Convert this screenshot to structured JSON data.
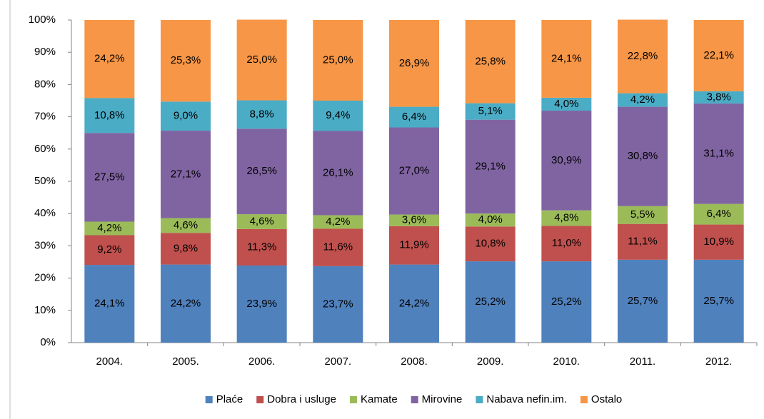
{
  "chart_data": {
    "type": "stacked_bar",
    "categories": [
      "2004.",
      "2005.",
      "2006.",
      "2007.",
      "2008.",
      "2009.",
      "2010.",
      "2011.",
      "2012."
    ],
    "series": [
      {
        "name": "Plaće",
        "color": "#4f81bd",
        "values": [
          24.1,
          24.2,
          23.9,
          23.7,
          24.2,
          25.2,
          25.2,
          25.7,
          25.7
        ],
        "value_labels": [
          "24,1%",
          "24,2%",
          "23,9%",
          "23,7%",
          "24,2%",
          "25,2%",
          "25,2%",
          "25,7%",
          "25,7%"
        ]
      },
      {
        "name": "Dobra i usluge",
        "color": "#c0504d",
        "values": [
          9.2,
          9.8,
          11.3,
          11.6,
          11.9,
          10.8,
          11.0,
          11.1,
          10.9
        ],
        "value_labels": [
          "9,2%",
          "9,8%",
          "11,3%",
          "11,6%",
          "11,9%",
          "10,8%",
          "11,0%",
          "11,1%",
          "10,9%"
        ]
      },
      {
        "name": "Kamate",
        "color": "#9bbb59",
        "values": [
          4.2,
          4.6,
          4.6,
          4.2,
          3.6,
          4.0,
          4.8,
          5.5,
          6.4
        ],
        "value_labels": [
          "4,2%",
          "4,6%",
          "4,6%",
          "4,2%",
          "3,6%",
          "4,0%",
          "4,8%",
          "5,5%",
          "6,4%"
        ]
      },
      {
        "name": "Mirovine",
        "color": "#8064a2",
        "values": [
          27.5,
          27.1,
          26.5,
          26.1,
          27.0,
          29.1,
          30.9,
          30.8,
          31.1
        ],
        "value_labels": [
          "27,5%",
          "27,1%",
          "26,5%",
          "26,1%",
          "27,0%",
          "29,1%",
          "30,9%",
          "30,8%",
          "31,1%"
        ]
      },
      {
        "name": "Nabava nefin.im.",
        "color": "#4bacc6",
        "values": [
          10.8,
          9.0,
          8.8,
          9.4,
          6.4,
          5.1,
          4.0,
          4.2,
          3.8
        ],
        "value_labels": [
          "10,8%",
          "9,0%",
          "8,8%",
          "9,4%",
          "6,4%",
          "5,1%",
          "4,0%",
          "4,2%",
          "3,8%"
        ]
      },
      {
        "name": "Ostalo",
        "color": "#f79646",
        "values": [
          24.2,
          25.3,
          25.0,
          25.0,
          26.9,
          25.8,
          24.1,
          22.8,
          22.1
        ],
        "value_labels": [
          "24,2%",
          "25,3%",
          "25,0%",
          "25,0%",
          "26,9%",
          "25,8%",
          "24,1%",
          "22,8%",
          "22,1%"
        ]
      }
    ],
    "ylim": [
      0,
      100
    ],
    "yticks": [
      {
        "value": 0,
        "label": "0%"
      },
      {
        "value": 10,
        "label": "10%"
      },
      {
        "value": 20,
        "label": "20%"
      },
      {
        "value": 30,
        "label": "30%"
      },
      {
        "value": 40,
        "label": "40%"
      },
      {
        "value": 50,
        "label": "50%"
      },
      {
        "value": 60,
        "label": "60%"
      },
      {
        "value": 70,
        "label": "70%"
      },
      {
        "value": 80,
        "label": "80%"
      },
      {
        "value": 90,
        "label": "90%"
      },
      {
        "value": 100,
        "label": "100%"
      }
    ],
    "legend": "bottom"
  }
}
